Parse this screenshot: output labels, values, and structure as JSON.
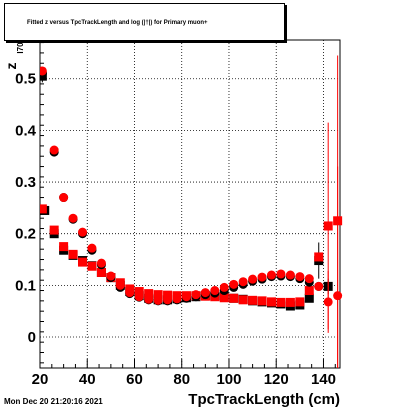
{
  "chart_data": {
    "type": "scatter",
    "title": "Fitted  z   versus TpcTrackLength and log   (|†|) for Primary muon+",
    "title_sub_i70": "I70",
    "title_sub_10": "10",
    "xlabel": "TpcTrackLength (cm)",
    "ylabel": "z",
    "ylabel_sub": "I70",
    "xlim": [
      20,
      147
    ],
    "ylim": [
      -0.06,
      0.575
    ],
    "xticks": [
      20,
      40,
      60,
      80,
      100,
      120,
      140
    ],
    "xtick_labels": [
      "20",
      "40",
      "60",
      "80",
      "100",
      "120",
      "140"
    ],
    "yticks": [
      0,
      0.1,
      0.2,
      0.3,
      0.4,
      0.5
    ],
    "ytick_labels": [
      "0",
      "0.1",
      "0.2",
      "0.3",
      "0.4",
      "0.5"
    ],
    "grid": true,
    "series": [
      {
        "marker": "square",
        "color": "#000000",
        "points": [
          [
            21,
            0.505,
            0.012
          ],
          [
            22,
            0.245,
            0
          ],
          [
            26,
            0.2,
            0
          ],
          [
            30,
            0.168,
            0
          ],
          [
            34,
            0.158,
            0
          ],
          [
            38,
            0.148,
            0
          ],
          [
            42,
            0.138,
            0
          ],
          [
            46,
            0.125,
            0
          ],
          [
            50,
            0.115,
            0
          ],
          [
            54,
            0.1,
            0
          ],
          [
            58,
            0.088,
            0
          ],
          [
            62,
            0.08,
            0
          ],
          [
            66,
            0.075,
            0
          ],
          [
            70,
            0.072,
            0
          ],
          [
            74,
            0.072,
            0
          ],
          [
            78,
            0.074,
            0
          ],
          [
            82,
            0.076,
            0
          ],
          [
            86,
            0.078,
            0
          ],
          [
            90,
            0.08,
            0
          ],
          [
            94,
            0.08,
            0
          ],
          [
            98,
            0.078,
            0
          ],
          [
            102,
            0.075,
            0
          ],
          [
            106,
            0.073,
            0
          ],
          [
            110,
            0.07,
            0
          ],
          [
            114,
            0.068,
            0
          ],
          [
            118,
            0.066,
            0
          ],
          [
            122,
            0.064,
            0
          ],
          [
            126,
            0.06,
            0
          ],
          [
            130,
            0.062,
            0
          ],
          [
            134,
            0.075,
            0
          ],
          [
            138,
            0.148,
            0.035
          ],
          [
            142,
            0.098,
            0.015
          ]
        ]
      },
      {
        "marker": "square",
        "color": "#ff0000",
        "points": [
          [
            21,
            0.248,
            0
          ],
          [
            26,
            0.207,
            0
          ],
          [
            30,
            0.175,
            0
          ],
          [
            34,
            0.16,
            0
          ],
          [
            38,
            0.145,
            0
          ],
          [
            42,
            0.137,
            0
          ],
          [
            46,
            0.125,
            0
          ],
          [
            50,
            0.115,
            0
          ],
          [
            54,
            0.105,
            0
          ],
          [
            58,
            0.093,
            0
          ],
          [
            62,
            0.088,
            0
          ],
          [
            66,
            0.084,
            0
          ],
          [
            70,
            0.082,
            0
          ],
          [
            74,
            0.081,
            0
          ],
          [
            78,
            0.08,
            0
          ],
          [
            82,
            0.08,
            0
          ],
          [
            86,
            0.08,
            0
          ],
          [
            90,
            0.079,
            0
          ],
          [
            94,
            0.078,
            0
          ],
          [
            98,
            0.076,
            0
          ],
          [
            102,
            0.075,
            0
          ],
          [
            106,
            0.072,
            0
          ],
          [
            110,
            0.071,
            0
          ],
          [
            114,
            0.07,
            0
          ],
          [
            118,
            0.068,
            0
          ],
          [
            122,
            0.067,
            0
          ],
          [
            126,
            0.067,
            0
          ],
          [
            130,
            0.068,
            0
          ],
          [
            134,
            0.09,
            0
          ],
          [
            138,
            0.155,
            0
          ],
          [
            142,
            0.215,
            0.2
          ],
          [
            146,
            0.225,
            0.32
          ]
        ]
      },
      {
        "marker": "circle",
        "color": "#000000",
        "points": [
          [
            21,
            0.51
          ],
          [
            26,
            0.358
          ],
          [
            30,
            0.27
          ],
          [
            34,
            0.228
          ],
          [
            38,
            0.2
          ],
          [
            42,
            0.168
          ],
          [
            46,
            0.14
          ],
          [
            50,
            0.115
          ],
          [
            54,
            0.096
          ],
          [
            58,
            0.084
          ],
          [
            62,
            0.077
          ],
          [
            66,
            0.072
          ],
          [
            70,
            0.07
          ],
          [
            74,
            0.07
          ],
          [
            78,
            0.072
          ],
          [
            82,
            0.075
          ],
          [
            86,
            0.078
          ],
          [
            90,
            0.082
          ],
          [
            94,
            0.085
          ],
          [
            98,
            0.09
          ],
          [
            102,
            0.096
          ],
          [
            106,
            0.102
          ],
          [
            110,
            0.108
          ],
          [
            114,
            0.112
          ],
          [
            118,
            0.117
          ],
          [
            122,
            0.118
          ],
          [
            126,
            0.117
          ],
          [
            130,
            0.113
          ],
          [
            134,
            0.106
          ],
          [
            138,
            0.098
          ]
        ]
      },
      {
        "marker": "circle",
        "color": "#ff0000",
        "points": [
          [
            21,
            0.515,
            0
          ],
          [
            26,
            0.362,
            0
          ],
          [
            30,
            0.27,
            0
          ],
          [
            34,
            0.23,
            0
          ],
          [
            38,
            0.203,
            0
          ],
          [
            42,
            0.172,
            0
          ],
          [
            46,
            0.143,
            0
          ],
          [
            50,
            0.118,
            0
          ],
          [
            54,
            0.1,
            0
          ],
          [
            58,
            0.086,
            0
          ],
          [
            62,
            0.078,
            0
          ],
          [
            66,
            0.073,
            0
          ],
          [
            70,
            0.071,
            0
          ],
          [
            74,
            0.072,
            0
          ],
          [
            78,
            0.074,
            0
          ],
          [
            82,
            0.078,
            0
          ],
          [
            86,
            0.082,
            0
          ],
          [
            90,
            0.086,
            0
          ],
          [
            94,
            0.09,
            0
          ],
          [
            98,
            0.096,
            0
          ],
          [
            102,
            0.102,
            0
          ],
          [
            106,
            0.107,
            0
          ],
          [
            110,
            0.112,
            0
          ],
          [
            114,
            0.116,
            0
          ],
          [
            118,
            0.12,
            0
          ],
          [
            122,
            0.122,
            0
          ],
          [
            126,
            0.12,
            0
          ],
          [
            130,
            0.117,
            0
          ],
          [
            134,
            0.113,
            0
          ],
          [
            138,
            0.098,
            0
          ],
          [
            142,
            0.068,
            0.06
          ],
          [
            146,
            0.08,
            0.25
          ]
        ]
      }
    ]
  },
  "footer_text": "Mon Dec 20 21:20:16 2021"
}
